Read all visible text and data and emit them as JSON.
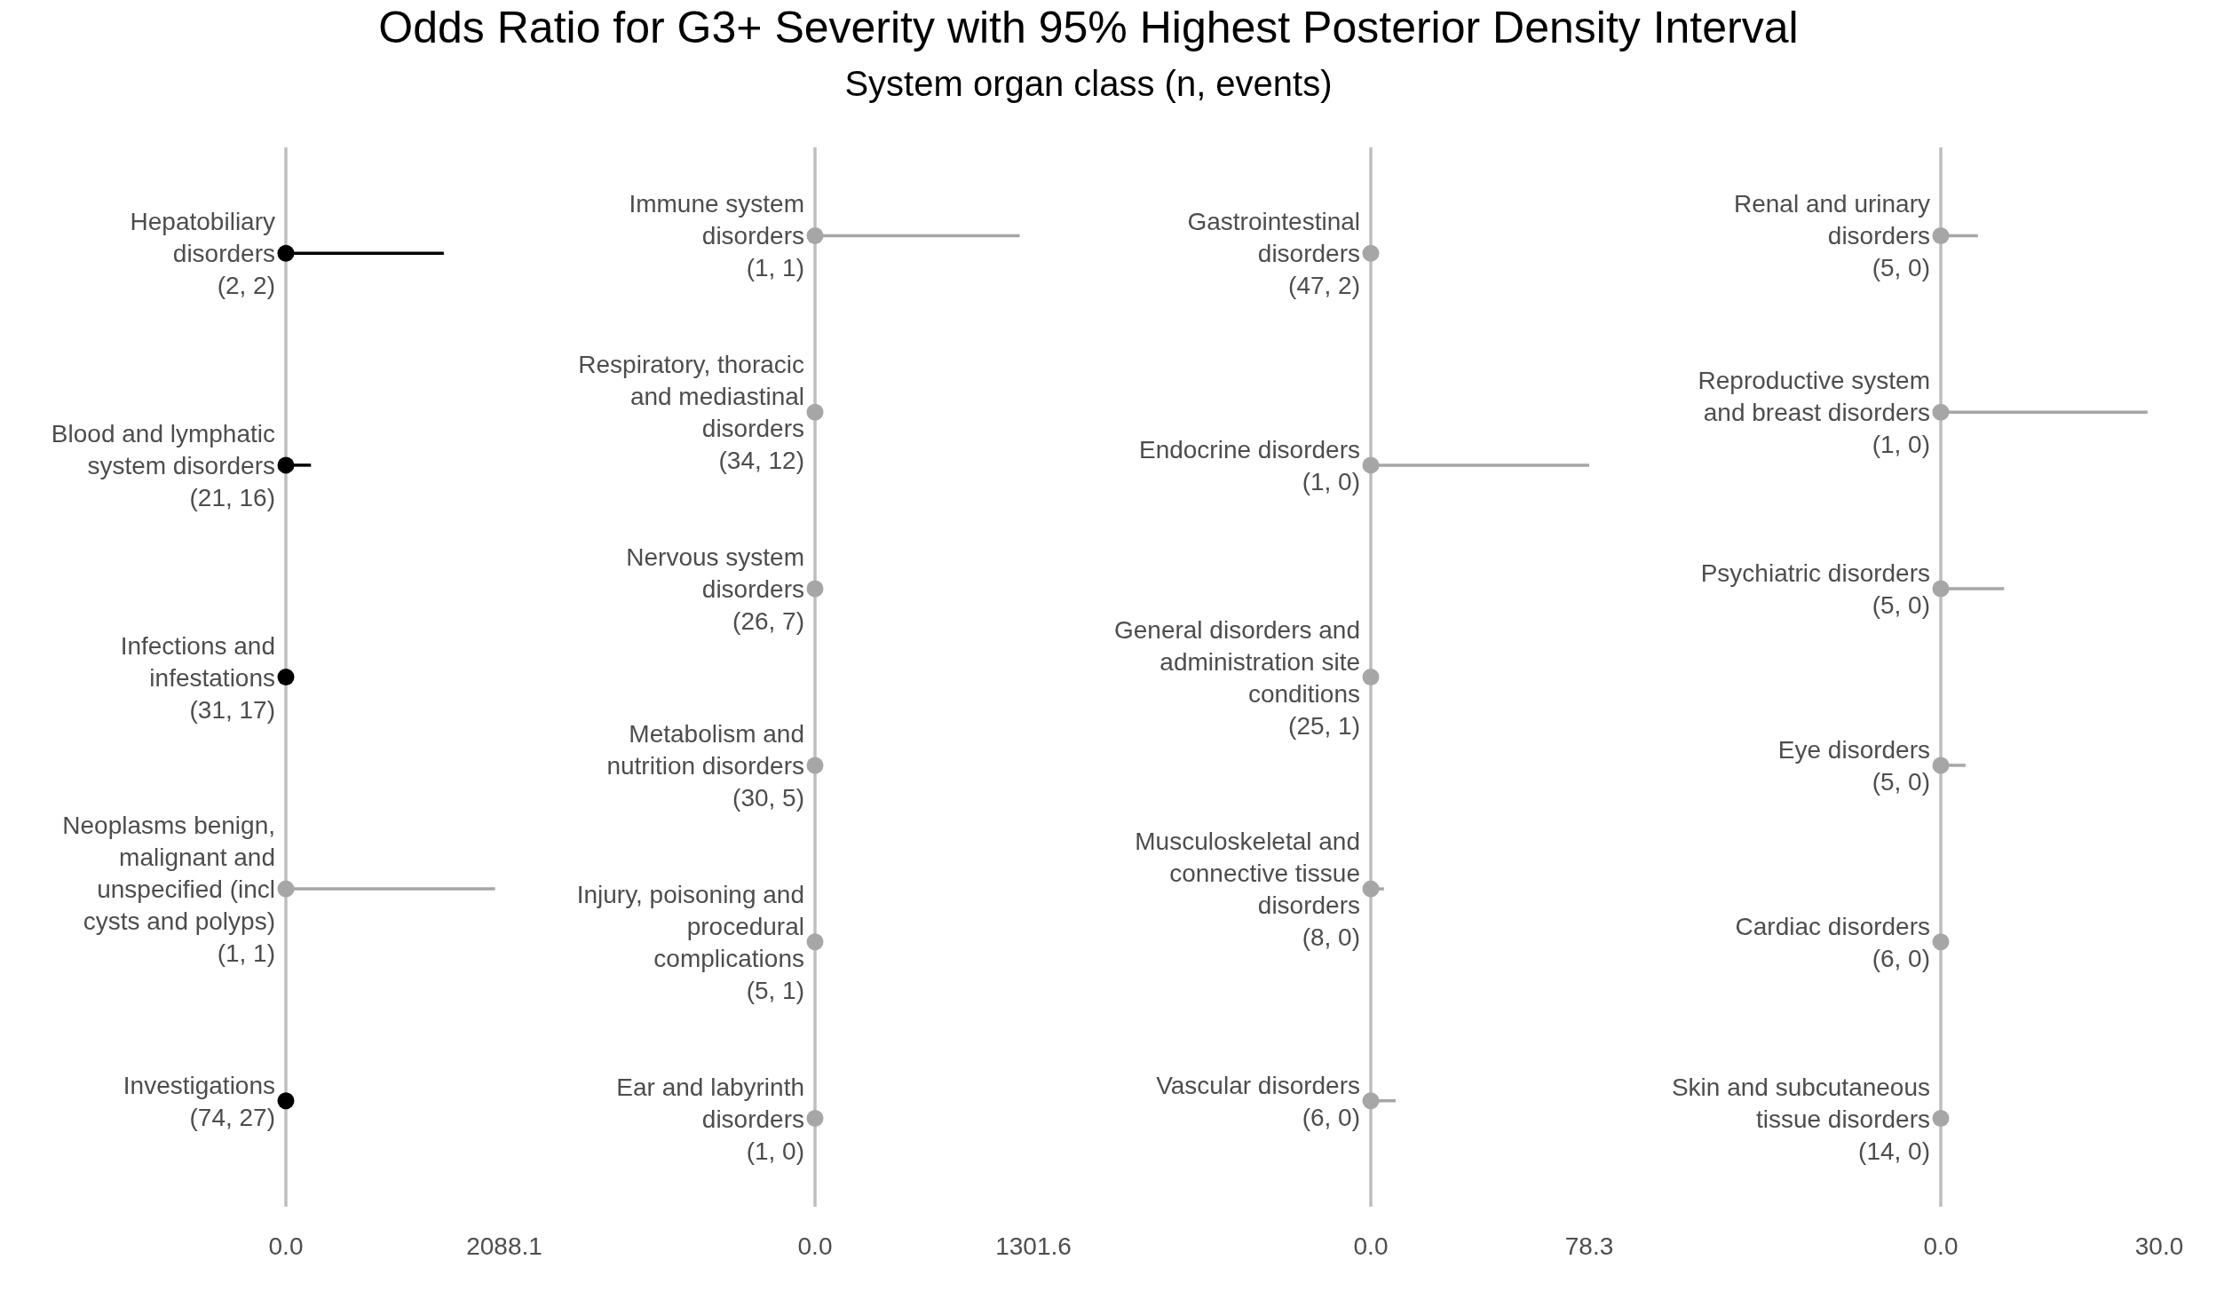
{
  "chart_data": [
    {
      "type": "scatter",
      "title": "Odds Ratio for G3+ Severity with 95% Highest Posterior Density Interval",
      "orientation": "horizontal",
      "marker": "circle",
      "categories": [
        "Hepatobiliary disorders (2, 2)",
        "Blood and lymphatic system disorders (21, 16)",
        "Infections and infestations (31, 17)",
        "Neoplasms benign, malignant and unspecified (incl cysts and polyps) (1, 1)",
        "Investigations (74, 27)"
      ],
      "values": [
        0,
        0,
        0,
        0,
        0
      ],
      "errors": [
        [
          0,
          1510
        ],
        [
          0,
          240
        ],
        null,
        [
          0,
          2000
        ],
        null
      ],
      "colors": [
        "#000000",
        "#000000",
        "#000000",
        "#a6a6a6",
        "#000000"
      ],
      "xlim": [
        0,
        2088.1
      ],
      "xticks": [
        {
          "value": 0,
          "label": "0.0"
        },
        {
          "value": 2088.1,
          "label": "2088.1"
        }
      ]
    },
    {
      "type": "scatter",
      "subtitle": "System organ class (n, events)",
      "orientation": "horizontal",
      "marker": "circle",
      "categories": [
        "Immune system disorders (1, 1)",
        "Respiratory, thoracic and mediastinal disorders (34, 12)",
        "Nervous system disorders (26, 7)",
        "Metabolism and nutrition disorders (30, 5)",
        "Injury, poisoning and procedural complications (5, 1)",
        "Ear and labyrinth disorders (1, 0)"
      ],
      "values": [
        0,
        0,
        0,
        0,
        0,
        0
      ],
      "errors": [
        [
          0,
          1220
        ],
        null,
        null,
        null,
        null,
        null
      ],
      "colors": [
        "#a6a6a6",
        "#a6a6a6",
        "#a6a6a6",
        "#a6a6a6",
        "#a6a6a6",
        "#a6a6a6"
      ],
      "xlim": [
        0,
        1301.6
      ],
      "xticks": [
        {
          "value": 0,
          "label": "0.0"
        },
        {
          "value": 1301.6,
          "label": "1301.6"
        }
      ]
    },
    {
      "type": "scatter",
      "orientation": "horizontal",
      "marker": "circle",
      "categories": [
        "Gastrointestinal disorders (47, 2)",
        "Endocrine disorders (1, 0)",
        "General disorders and administration site conditions (25, 1)",
        "Musculoskeletal and connective tissue disorders (8, 0)",
        "Vascular disorders (6, 0)"
      ],
      "values": [
        0,
        0,
        0,
        0,
        0
      ],
      "errors": [
        null,
        [
          0,
          78.3
        ],
        null,
        [
          0,
          4.7
        ],
        [
          0,
          8.9
        ]
      ],
      "colors": [
        "#a6a6a6",
        "#a6a6a6",
        "#a6a6a6",
        "#a6a6a6",
        "#a6a6a6"
      ],
      "xlim": [
        0,
        78.3
      ],
      "xticks": [
        {
          "value": 0,
          "label": "0.0"
        },
        {
          "value": 78.3,
          "label": "78.3"
        }
      ]
    },
    {
      "type": "scatter",
      "orientation": "horizontal",
      "marker": "circle",
      "categories": [
        "Renal and urinary disorders (5, 0)",
        "Reproductive system and breast disorders (1, 0)",
        "Psychiatric disorders (5, 0)",
        "Eye disorders (5, 0)",
        "Cardiac disorders (6, 0)",
        "Skin and subcutaneous tissue disorders (14, 0)"
      ],
      "values": [
        0,
        0,
        0,
        0,
        0,
        0
      ],
      "errors": [
        [
          0,
          5.1
        ],
        [
          0,
          28.4
        ],
        [
          0,
          8.7
        ],
        [
          0,
          3.4
        ],
        null,
        [
          0,
          0.6
        ]
      ],
      "colors": [
        "#a6a6a6",
        "#a6a6a6",
        "#a6a6a6",
        "#a6a6a6",
        "#a6a6a6",
        "#a6a6a6"
      ],
      "xlim": [
        0,
        30
      ],
      "xticks": [
        {
          "value": 0,
          "label": "0.0"
        },
        {
          "value": 30,
          "label": "30.0"
        }
      ]
    }
  ]
}
